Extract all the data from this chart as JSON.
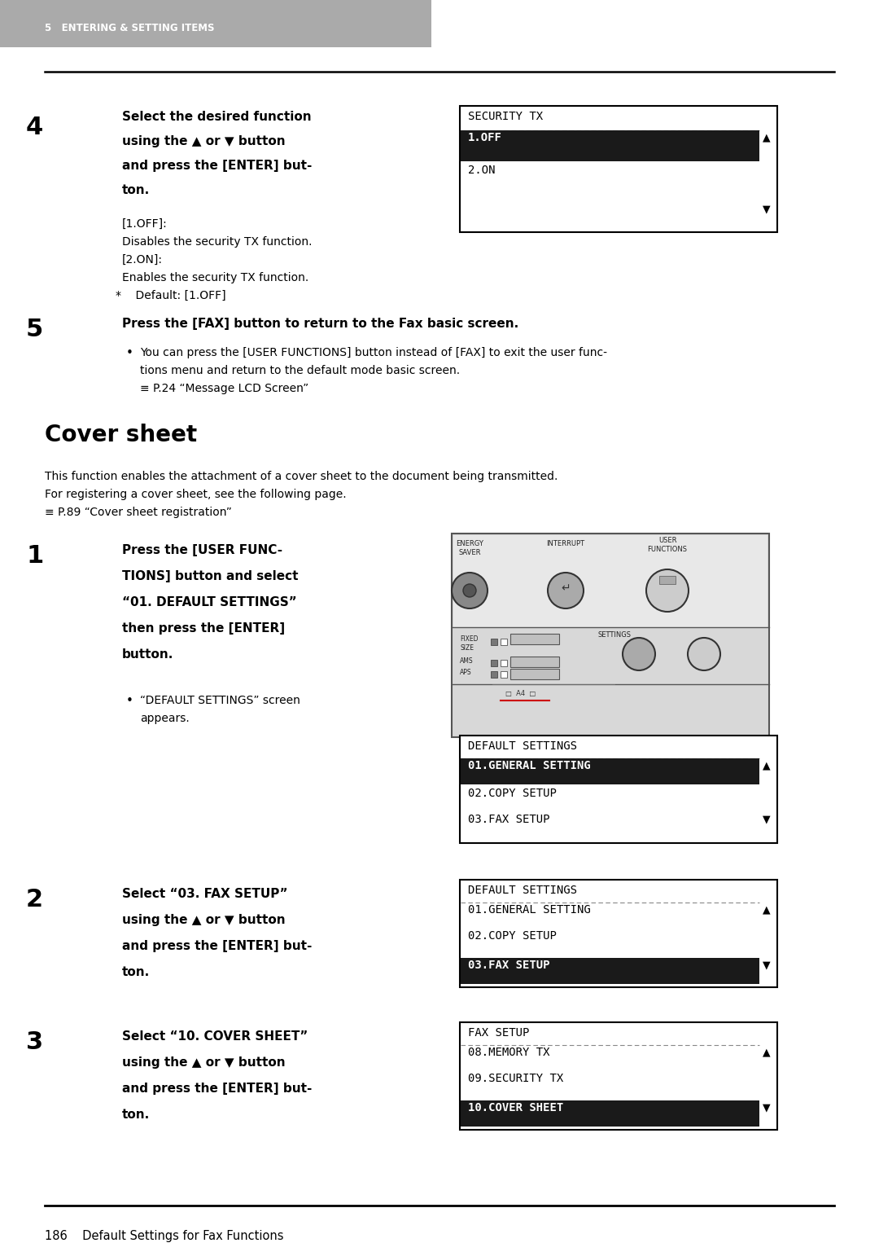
{
  "page_bg": "#ffffff",
  "header_bg": "#aaaaaa",
  "header_text": "5   ENTERING & SETTING ITEMS",
  "header_text_color": "#ffffff",
  "footer_text": "186    Default Settings for Fax Functions",
  "step4_number": "4",
  "step4_line1": "Select the desired function",
  "step4_line2": "using the ▲ or ▼ button",
  "step4_line3": "and press the [ENTER] but-",
  "step4_line4": "ton.",
  "step4_sub": "[1.OFF]:\nDisables the security TX function.\n[2.ON]:\nEnables the security TX function.\n*    Default: [1.OFF]",
  "lcd1_title": "SECURITY TX",
  "lcd1_row1": "1.OFF",
  "lcd1_row2": "2.ON",
  "step5_number": "5",
  "step5_bold": "Press the [FAX] button to return to the Fax basic screen.",
  "step5_sub1": "You can press the [USER FUNCTIONS] button instead of [FAX] to exit the user func-",
  "step5_sub2": "tions menu and return to the default mode basic screen.",
  "step5_sub3": "≡ P.24 “Message LCD Screen”",
  "cover_title": "Cover sheet",
  "cover_body1": "This function enables the attachment of a cover sheet to the document being transmitted.",
  "cover_body2": "For registering a cover sheet, see the following page.",
  "cover_body3": "≡ P.89 “Cover sheet registration”",
  "step1_number": "1",
  "step1_line1": "Press the [USER FUNC-",
  "step1_line2": "TIONS] button and select",
  "step1_line3": "“01. DEFAULT SETTINGS”",
  "step1_line4": "then press the [ENTER]",
  "step1_line5": "button.",
  "step1_bullet1": "“DEFAULT SETTINGS” screen",
  "step1_bullet2": "appears.",
  "lcd2_title": "DEFAULT SETTINGS",
  "lcd2_row1": "01.GENERAL SETTING",
  "lcd2_row2": "02.COPY SETUP",
  "lcd2_row3": "03.FAX SETUP",
  "step2_number": "2",
  "step2_line1": "Select “03. FAX SETUP”",
  "step2_line2": "using the ▲ or ▼ button",
  "step2_line3": "and press the [ENTER] but-",
  "step2_line4": "ton.",
  "lcd3_title": "DEFAULT SETTINGS",
  "lcd3_row1": "01.GENERAL SETTING",
  "lcd3_row2": "02.COPY SETUP",
  "lcd3_row3": "03.FAX SETUP",
  "step3_number": "3",
  "step3_line1": "Select “10. COVER SHEET”",
  "step3_line2": "using the ▲ or ▼ button",
  "step3_line3": "and press the [ENTER] but-",
  "step3_line4": "ton.",
  "lcd4_title": "FAX SETUP",
  "lcd4_row1": "08.MEMORY TX",
  "lcd4_row2": "09.SECURITY TX",
  "lcd4_row3": "10.COVER SHEET",
  "selected_bg": "#1a1a1a",
  "selected_fg": "#ffffff",
  "normal_fg": "#000000",
  "lcd_border": "#000000",
  "dash_color": "#888888"
}
